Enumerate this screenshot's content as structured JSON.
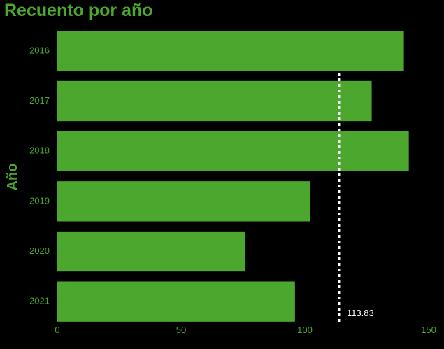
{
  "chart_data": {
    "type": "bar",
    "orientation": "horizontal",
    "title": "Recuento por año",
    "ylabel": "Año",
    "xlabel": "",
    "categories": [
      "2016",
      "2017",
      "2018",
      "2019",
      "2020",
      "2021"
    ],
    "values": [
      140,
      127,
      142,
      102,
      76,
      96
    ],
    "xlim": [
      0,
      150
    ],
    "xticks": [
      "0",
      "50",
      "100",
      "150"
    ],
    "grid": false,
    "reference_line": {
      "value": 113.83,
      "label": "113.83",
      "style": "dashed",
      "color": "#ffffff"
    },
    "colors": {
      "bar": "#4ca72f",
      "text": "#4ca72f",
      "background": "#000000"
    }
  }
}
